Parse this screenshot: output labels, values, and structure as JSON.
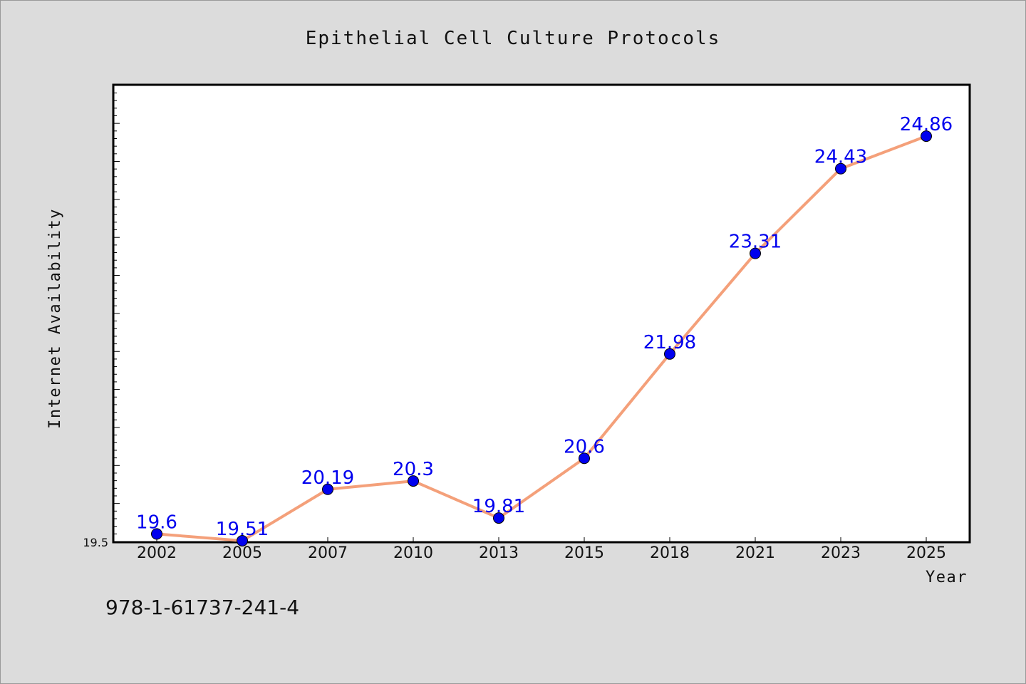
{
  "chart_data": {
    "type": "line",
    "title": "Epithelial Cell Culture Protocols",
    "xlabel": "Year",
    "ylabel": "Internet Availability",
    "categories": [
      "2002",
      "2005",
      "2007",
      "2010",
      "2013",
      "2015",
      "2018",
      "2021",
      "2023",
      "2025"
    ],
    "series": [
      {
        "values": [
          19.6,
          19.51,
          20.19,
          20.3,
          19.81,
          20.6,
          21.98,
          23.31,
          24.43,
          24.86
        ],
        "data_labels": [
          "19.6",
          "19.51",
          "20.19",
          "20.3",
          "19.81",
          "20.6",
          "21.98",
          "23.31",
          "24.43",
          "24.86"
        ]
      }
    ],
    "ylim": [
      19.5,
      25.53
    ],
    "ytick_labels": [
      "19.5"
    ],
    "grid": false,
    "legend": "none",
    "colors": {
      "line": "#f4a07a",
      "marker": "#0000ee",
      "data_label": "#0000ee",
      "plot_background": "#ffffff",
      "page_background": "#dcdcdc"
    }
  },
  "footnote": "978-1-61737-241-4"
}
